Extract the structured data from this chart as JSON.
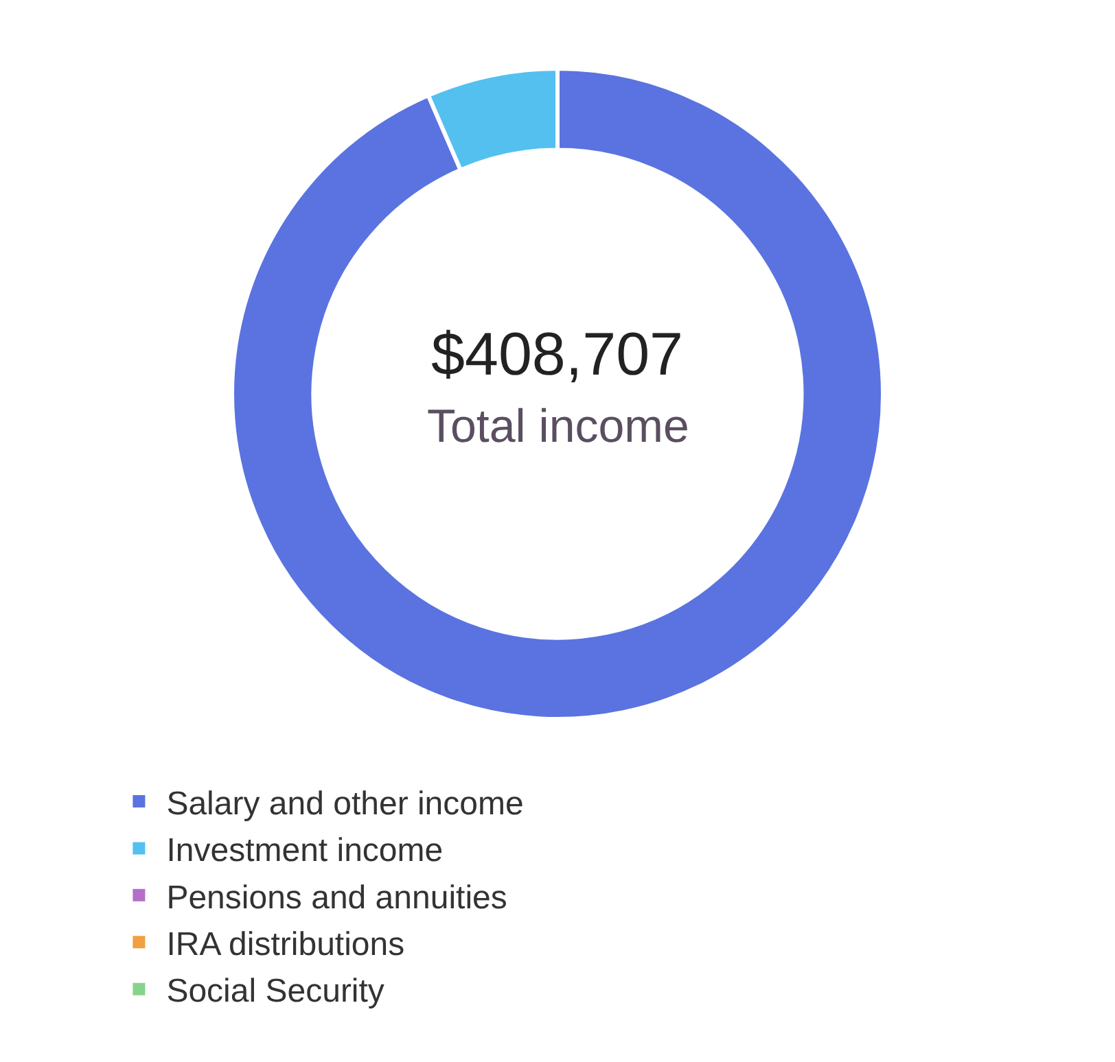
{
  "chart_data": {
    "type": "donut",
    "categories": [
      "Salary and other income",
      "Investment income",
      "Pensions and annuities",
      "IRA distributions",
      "Social Security"
    ],
    "values": [
      93.5,
      6.5,
      0,
      0,
      0
    ],
    "colors": [
      "#5a73e0",
      "#54c0f0",
      "#b36fc9",
      "#f0a040",
      "#86d48a"
    ],
    "annotations": [
      "$408,707",
      "Total income"
    ],
    "legend": "bottom"
  }
}
